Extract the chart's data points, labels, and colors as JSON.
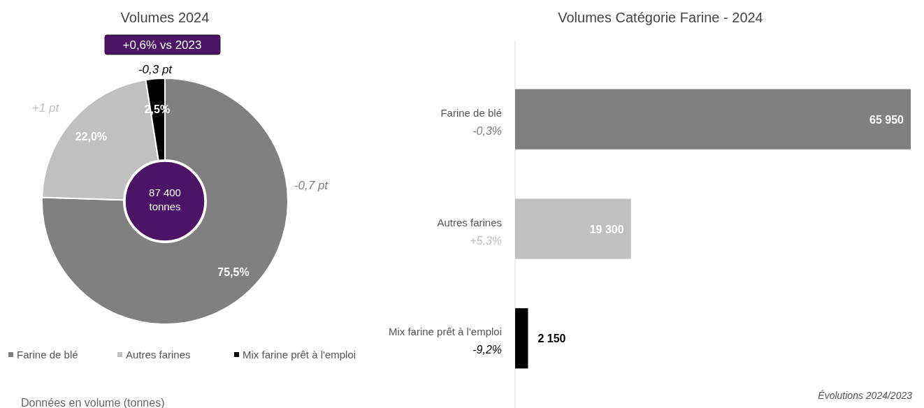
{
  "chart_data": [
    {
      "type": "donut",
      "title": "Volumes 2024",
      "categories": [
        "Farine de blé",
        "Autres farines",
        "Mix farine prêt à l'emploi"
      ],
      "values": [
        75.5,
        22.0,
        2.5
      ],
      "colors": [
        "#808080",
        "#c0c0c0",
        "#000000"
      ],
      "value_labels": [
        "75,5%",
        "22,0%",
        "2,5%"
      ],
      "legend": "bottom",
      "annotations": [
        "+0,6% vs 2023",
        "87 400 tonnes",
        "-0,7 pt",
        "+1 pt",
        "-0,3 pt",
        "Données en volume (tonnes)"
      ]
    },
    {
      "type": "bar",
      "orientation": "horizontal",
      "title": "Volumes Catégorie Farine - 2024",
      "categories": [
        "Farine de blé",
        "Autres farines",
        "Mix farine prêt à l'emploi"
      ],
      "values": [
        65950,
        19300,
        2150
      ],
      "colors": [
        "#808080",
        "#c0c0c0",
        "#000000"
      ],
      "value_labels": [
        "65 950",
        "19 300",
        "2 150"
      ],
      "annotations": [
        "-0,3%",
        "+5,3%",
        "-9,2%",
        "Évolutions 2024/2023"
      ]
    }
  ]
}
